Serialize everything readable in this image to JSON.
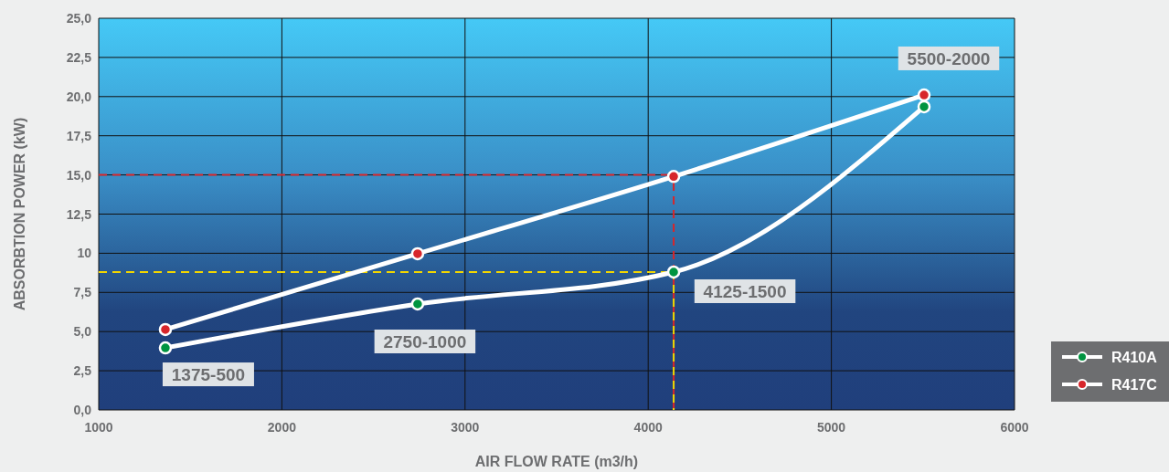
{
  "chart_data": {
    "type": "line",
    "xlabel": "AIR FLOW RATE (m3/h)",
    "ylabel": "ABSORBTION POWER (kW)",
    "xlim": [
      1000,
      6000
    ],
    "xticks": [
      1000,
      2000,
      3000,
      4000,
      5000,
      6000
    ],
    "ylim": [
      0,
      25
    ],
    "yticks": [
      {
        "value": 0,
        "label": "0,0"
      },
      {
        "value": 2.5,
        "label": "2,5"
      },
      {
        "value": 5,
        "label": "5,0"
      },
      {
        "value": 7.5,
        "label": "7,5"
      },
      {
        "value": 10,
        "label": "10"
      },
      {
        "value": 12.5,
        "label": "12,5"
      },
      {
        "value": 15,
        "label": "15,0"
      },
      {
        "value": 17.5,
        "label": "17,5"
      },
      {
        "value": 20,
        "label": "20,0"
      },
      {
        "value": 22.5,
        "label": "22,5"
      },
      {
        "value": 25,
        "label": "25,0"
      }
    ],
    "grid": true,
    "legend": "bottom right",
    "marker": "circle",
    "line_style": "solid",
    "series": [
      {
        "name": "R410A",
        "color": "#009440",
        "x": [
          1364,
          2741,
          4139,
          5506
        ],
        "values": [
          3.96,
          6.76,
          8.8,
          19.35
        ]
      },
      {
        "name": "R417C",
        "color": "#d7262b",
        "x": [
          1364,
          2741,
          4139,
          5506
        ],
        "values": [
          5.13,
          9.97,
          14.9,
          20.1
        ]
      }
    ],
    "ref_lines": [
      {
        "axis": "y",
        "value": 15,
        "color": "#d7262b",
        "line_style": "dashed"
      },
      {
        "axis": "y",
        "value": 8.8,
        "color": "#f2d600",
        "line_style": "dashed"
      },
      {
        "axis": "x",
        "value": 4139,
        "color": "#d7262b",
        "line_style": "dashed"
      },
      {
        "axis": "x",
        "value": 4139,
        "color": "#f2d600",
        "line_style": "dashed"
      }
    ],
    "annotations": [
      "1375-500",
      "2750-1000",
      "4125-1500",
      "5500-2000"
    ]
  }
}
